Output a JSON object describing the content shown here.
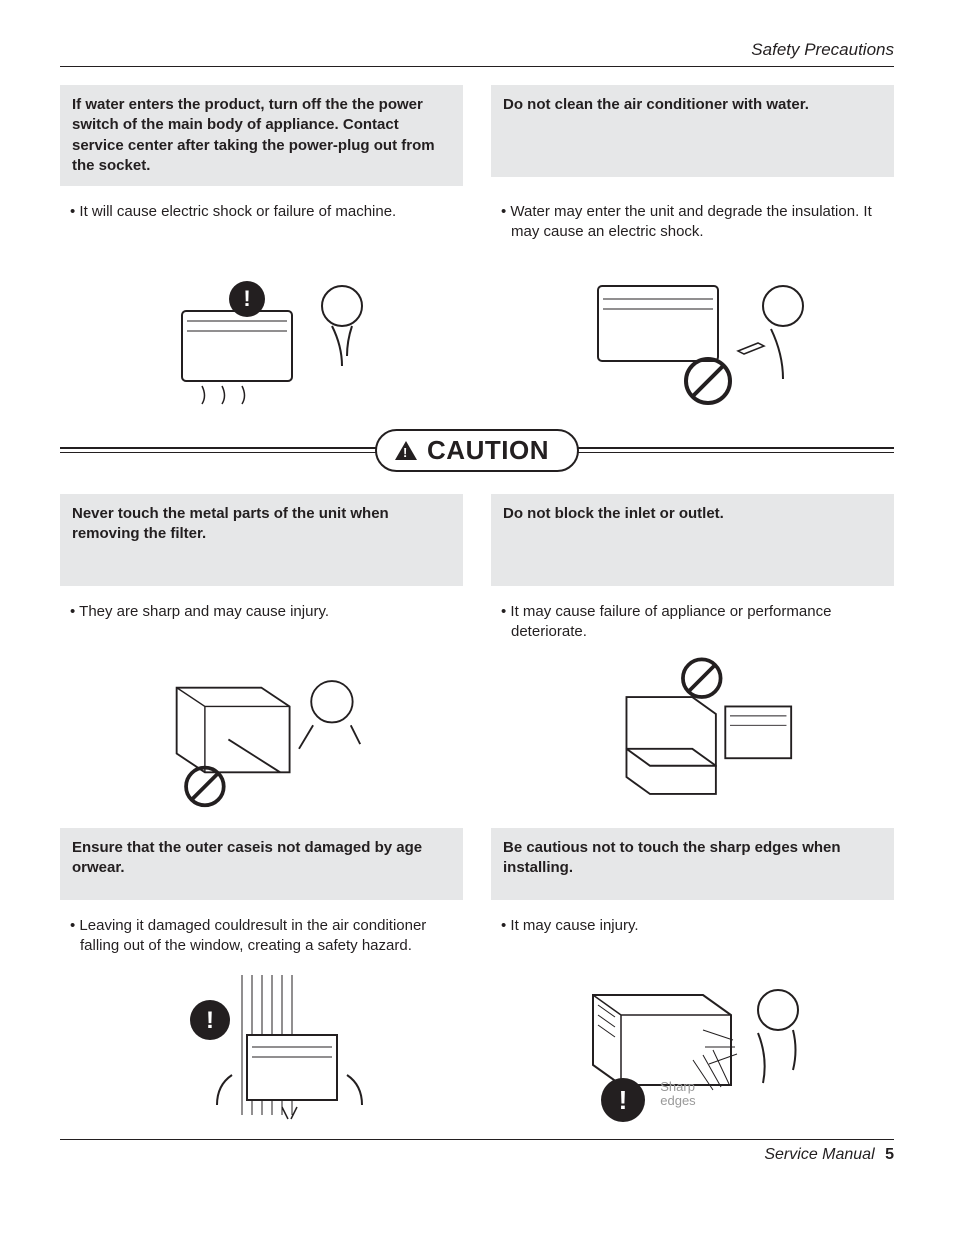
{
  "header": {
    "section": "Safety Precautions"
  },
  "top": {
    "left": {
      "heading": "If water enters the product, turn off the the power switch of the main body of appliance. Contact service center after taking the power-plug out from the socket.",
      "bullet": "It will cause electric shock or failure of machine."
    },
    "right": {
      "heading": "Do not clean the air conditioner with water.",
      "bullet": "Water may enter the unit and degrade the insulation. It may cause an electric shock."
    }
  },
  "caution": {
    "label": "CAUTION"
  },
  "mid": {
    "left": {
      "heading": "Never touch the metal parts of the unit when removing the filter.",
      "bullet": "They are sharp and may cause injury."
    },
    "right": {
      "heading": "Do not block the inlet or outlet.",
      "bullet": "It may cause failure of appliance or performance deteriorate."
    }
  },
  "bot": {
    "left": {
      "heading": "Ensure that the outer caseis not damaged by age orwear.",
      "bullet": "Leaving it damaged couldresult in the air conditioner falling out of the window, creating a safety hazard."
    },
    "right": {
      "heading": "Be cautious not to touch the sharp edges when installing.",
      "bullet": "It may cause injury.",
      "callout": "Sharp\nedges"
    }
  },
  "footer": {
    "doc": "Service Manual",
    "page": "5"
  },
  "colors": {
    "text": "#231f20",
    "box_bg": "#e6e7e8",
    "page_bg": "#ffffff"
  },
  "typography": {
    "body_pt": 15,
    "heading_weight": "bold",
    "caution_pt": 26
  },
  "icons": {
    "warning": "exclamation-circle",
    "prohibit": "prohibit-circle"
  }
}
